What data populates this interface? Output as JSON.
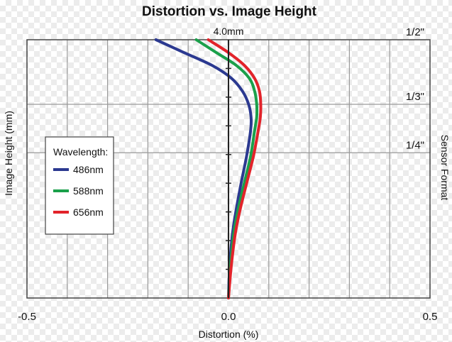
{
  "chart_data": {
    "type": "line",
    "title": "Distortion vs. Image Height",
    "xlabel": "Distortion (%)",
    "ylabel": "Image Height (mm)",
    "ylabel_right": "Sensor Format",
    "xlim": [
      -0.5,
      0.5
    ],
    "ylim": [
      0,
      4.0
    ],
    "x_ticks": [
      {
        "value": -0.5,
        "label": "-0.5"
      },
      {
        "value": 0,
        "label": "0.0"
      },
      {
        "value": 0.5,
        "label": "0.5"
      }
    ],
    "y_top_label": "4.0mm",
    "sensor_formats": [
      {
        "label": "1/2\"",
        "y": 4.0
      },
      {
        "label": "1/3\"",
        "y": 3.0
      },
      {
        "label": "1/4\"",
        "y": 2.25
      }
    ],
    "grid": true,
    "legend": {
      "title": "Wavelength:",
      "placement": "left",
      "entries": [
        "486nm",
        "588nm",
        "656nm"
      ]
    },
    "series": [
      {
        "name": "486nm",
        "color": "#2b3990",
        "x": [
          0,
          0.003,
          0.01,
          0.02,
          0.032,
          0.045,
          0.055,
          0.056,
          0.05,
          0.035,
          0.008,
          -0.04,
          -0.11,
          -0.18
        ],
        "y": [
          0,
          0.5,
          1.0,
          1.4,
          1.8,
          2.2,
          2.6,
          2.8,
          3.0,
          3.2,
          3.4,
          3.6,
          3.8,
          4.0
        ]
      },
      {
        "name": "588nm",
        "color": "#1aa04a",
        "x": [
          0,
          0.005,
          0.013,
          0.025,
          0.04,
          0.055,
          0.065,
          0.07,
          0.07,
          0.065,
          0.052,
          0.02,
          -0.03,
          -0.08
        ],
        "y": [
          0,
          0.5,
          1.0,
          1.4,
          1.8,
          2.2,
          2.6,
          2.8,
          3.0,
          3.2,
          3.4,
          3.6,
          3.8,
          4.0
        ]
      },
      {
        "name": "656nm",
        "color": "#e2232a",
        "x": [
          0,
          0.007,
          0.017,
          0.03,
          0.046,
          0.062,
          0.074,
          0.079,
          0.08,
          0.077,
          0.065,
          0.04,
          0.0,
          -0.05
        ],
        "y": [
          0,
          0.5,
          1.0,
          1.4,
          1.8,
          2.2,
          2.6,
          2.8,
          3.0,
          3.2,
          3.4,
          3.6,
          3.8,
          4.0
        ]
      }
    ]
  }
}
